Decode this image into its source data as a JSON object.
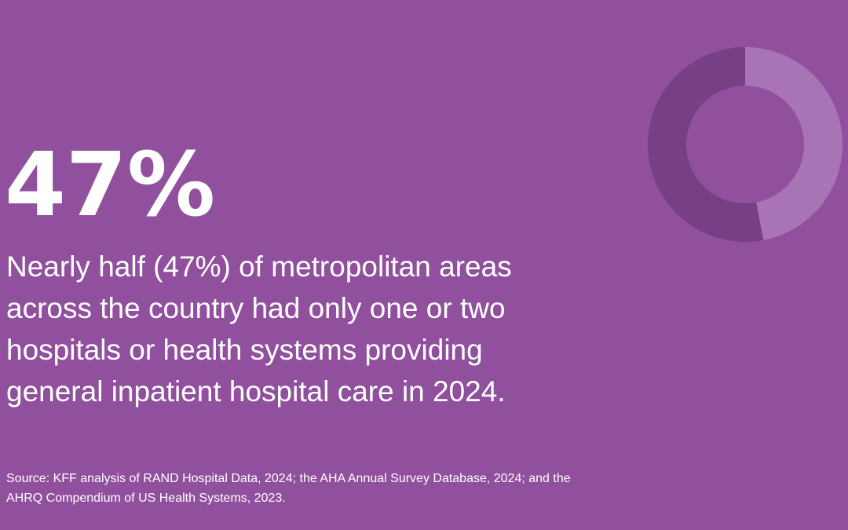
{
  "headline": "47%",
  "description": [
    "Nearly half (47%) of metropolitan areas",
    "across the country had only one or two",
    "hospitals or health systems providing",
    "general inpatient hospital care in 2024."
  ],
  "source": [
    "Source: KFF analysis of RAND Hospital Data, 2024; the AHA Annual Survey Database, 2024; and the",
    "AHRQ Compendium of US Health Systems, 2023."
  ],
  "chart_data": {
    "type": "donut",
    "values": [
      47,
      53
    ],
    "colors": [
      "#a874b6",
      "#773f84"
    ]
  }
}
